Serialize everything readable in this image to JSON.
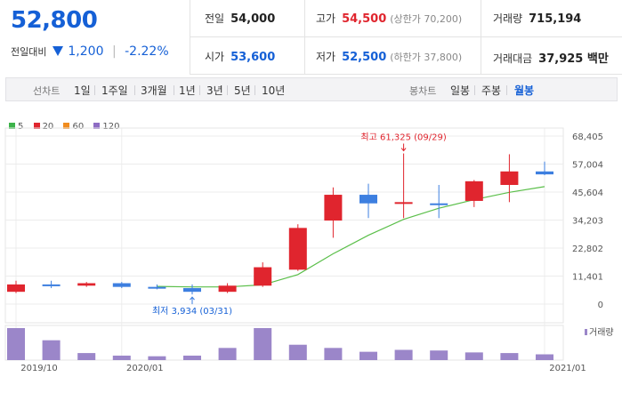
{
  "price": {
    "current": "52,800",
    "change_label": "전일대비",
    "change_amount": "1,200",
    "change_percent": "-2.22%",
    "direction_color": "#1560d6"
  },
  "stats": {
    "prev_close": {
      "label": "전일",
      "value": "54,000"
    },
    "open": {
      "label": "시가",
      "value": "53,600"
    },
    "high": {
      "label": "고가",
      "value": "54,500",
      "sub": "(상한가 70,200)"
    },
    "low": {
      "label": "저가",
      "value": "52,500",
      "sub": "(하한가 37,800)"
    },
    "volume": {
      "label": "거래량",
      "value": "715,194"
    },
    "amount": {
      "label": "거래대금",
      "value": "37,925 백만"
    }
  },
  "toolbar": {
    "line_label": "선차트",
    "line_periods": [
      "1일",
      "1주일",
      "3개월",
      "1년",
      "3년",
      "5년",
      "10년"
    ],
    "candle_label": "봉차트",
    "candle_periods": [
      "일봉",
      "주봉",
      "월봉"
    ],
    "active_candle": "월봉"
  },
  "legend": [
    {
      "label": "5",
      "color": "#3cb34a"
    },
    {
      "label": "20",
      "color": "#e0252e"
    },
    {
      "label": "60",
      "color": "#f08c1e"
    },
    {
      "label": "120",
      "color": "#8e6cc4"
    }
  ],
  "colors": {
    "up": "#e0252e",
    "down": "#3d7fe0",
    "ma": "#5bbf4a",
    "volume": "#9b86c9"
  },
  "chart_data": {
    "type": "candlestick",
    "y_ticks": [
      "68,405",
      "57,004",
      "45,604",
      "34,203",
      "22,802",
      "11,401",
      "0"
    ],
    "y_tick_values": [
      68405,
      57004,
      45604,
      34203,
      22802,
      11401,
      0
    ],
    "ylim": [
      0,
      68405
    ],
    "x_ticks": [
      {
        "label": "2019/10",
        "index": 0
      },
      {
        "label": "2020/01",
        "index": 3
      },
      {
        "label": "2021/01",
        "index": 15
      }
    ],
    "candles": [
      {
        "open": 5000,
        "high": 9500,
        "low": 4500,
        "close": 8000
      },
      {
        "open": 8000,
        "high": 9500,
        "low": 6500,
        "close": 7500
      },
      {
        "open": 7500,
        "high": 9000,
        "low": 7000,
        "close": 8500
      },
      {
        "open": 8500,
        "high": 9000,
        "low": 6500,
        "close": 7000
      },
      {
        "open": 7000,
        "high": 8000,
        "low": 6000,
        "close": 6500
      },
      {
        "open": 6500,
        "high": 8000,
        "low": 3934,
        "close": 5000
      },
      {
        "open": 5000,
        "high": 8500,
        "low": 4500,
        "close": 7500
      },
      {
        "open": 7500,
        "high": 17000,
        "low": 7000,
        "close": 15000
      },
      {
        "open": 14000,
        "high": 32500,
        "low": 13500,
        "close": 31000
      },
      {
        "open": 34000,
        "high": 47500,
        "low": 27000,
        "close": 44500
      },
      {
        "open": 44500,
        "high": 49000,
        "low": 35000,
        "close": 41000
      },
      {
        "open": 41000,
        "high": 61325,
        "low": 35000,
        "close": 41500
      },
      {
        "open": 41000,
        "high": 48500,
        "low": 35000,
        "close": 40500
      },
      {
        "open": 42000,
        "high": 50500,
        "low": 39500,
        "close": 50000
      },
      {
        "open": 48500,
        "high": 61000,
        "low": 41500,
        "close": 54000
      },
      {
        "open": 54000,
        "high": 58000,
        "low": 52500,
        "close": 52800
      }
    ],
    "ma": [
      null,
      null,
      null,
      null,
      7200,
      7000,
      7000,
      7800,
      12000,
      20500,
      28000,
      34500,
      39000,
      42500,
      45500,
      47800
    ],
    "volume": [
      100,
      62,
      22,
      14,
      12,
      14,
      38,
      100,
      48,
      38,
      26,
      32,
      30,
      24,
      22,
      18
    ],
    "annotations": {
      "high": {
        "text": "최고 61,325 (09/29)",
        "index": 11,
        "value": 61325
      },
      "low": {
        "text": "최저 3,934 (03/31)",
        "index": 5,
        "value": 3934
      }
    },
    "volume_label": "거래량"
  }
}
